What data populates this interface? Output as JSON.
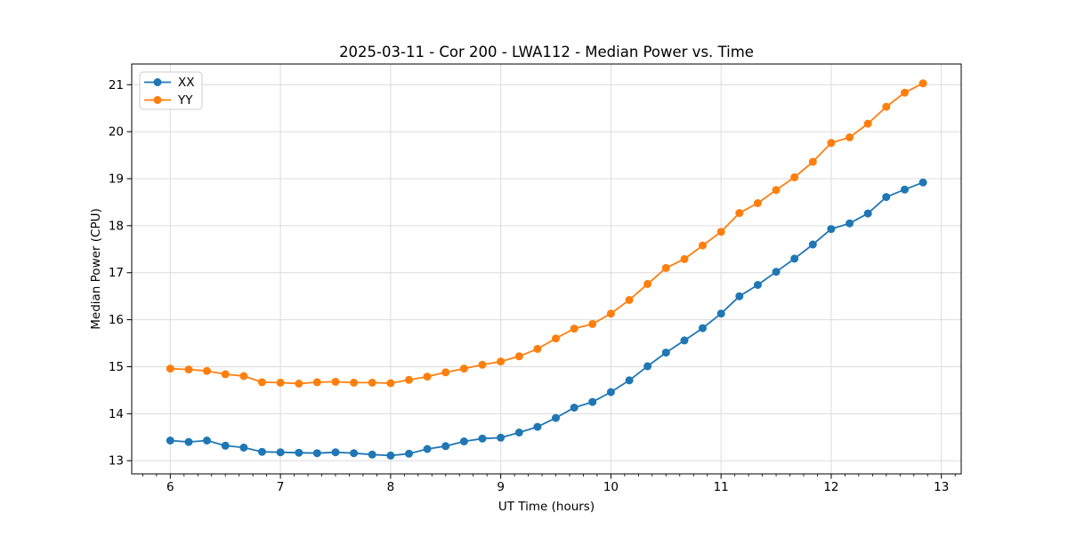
{
  "figure": {
    "title": "2025-03-11 - Cor 200 - LWA112 - Median Power vs. Time"
  },
  "chart_data": {
    "type": "line",
    "title": "2025-03-11 - Cor 200 - LWA112 - Median Power vs. Time",
    "xlabel": "UT Time (hours)",
    "ylabel": "Median Power (CPU)",
    "xlim": [
      5.65,
      13.18
    ],
    "ylim": [
      12.72,
      21.44
    ],
    "x_ticks": [
      6,
      7,
      8,
      9,
      10,
      11,
      12,
      13
    ],
    "y_ticks": [
      13,
      14,
      15,
      16,
      17,
      18,
      19,
      20,
      21
    ],
    "x_minor_tick_step": 0.125,
    "grid": true,
    "legend_position": "upper left",
    "x": [
      6.0,
      6.167,
      6.333,
      6.5,
      6.667,
      6.833,
      7.0,
      7.167,
      7.333,
      7.5,
      7.667,
      7.833,
      8.0,
      8.167,
      8.333,
      8.5,
      8.667,
      8.833,
      9.0,
      9.167,
      9.333,
      9.5,
      9.667,
      9.833,
      10.0,
      10.167,
      10.333,
      10.5,
      10.667,
      10.833,
      11.0,
      11.167,
      11.333,
      11.5,
      11.667,
      11.833,
      12.0,
      12.167,
      12.333,
      12.5,
      12.667,
      12.833
    ],
    "series": [
      {
        "name": "XX",
        "color": "#1f77b4",
        "values": [
          13.43,
          13.4,
          13.43,
          13.32,
          13.28,
          13.19,
          13.18,
          13.17,
          13.16,
          13.18,
          13.16,
          13.13,
          13.11,
          13.15,
          13.25,
          13.31,
          13.41,
          13.47,
          13.49,
          13.6,
          13.72,
          13.91,
          14.13,
          14.25,
          14.46,
          14.71,
          15.01,
          15.3,
          15.56,
          15.82,
          16.13,
          16.5,
          16.74,
          17.02,
          17.3,
          17.6,
          17.93,
          18.05,
          18.26,
          18.61,
          18.77,
          18.92
        ]
      },
      {
        "name": "YY",
        "color": "#ff7f0e",
        "values": [
          14.96,
          14.94,
          14.91,
          14.84,
          14.8,
          14.67,
          14.66,
          14.64,
          14.67,
          14.68,
          14.66,
          14.66,
          14.65,
          14.72,
          14.79,
          14.88,
          14.96,
          15.04,
          15.11,
          15.22,
          15.38,
          15.6,
          15.81,
          15.91,
          16.13,
          16.42,
          16.76,
          17.1,
          17.29,
          17.58,
          17.87,
          18.27,
          18.48,
          18.76,
          19.03,
          19.36,
          19.76,
          19.88,
          20.17,
          20.53,
          20.83,
          21.03
        ]
      }
    ],
    "colors": {
      "grid": "#dcdcdc",
      "spine": "#000000",
      "background": "#ffffff",
      "legend_border": "#cccccc"
    }
  }
}
